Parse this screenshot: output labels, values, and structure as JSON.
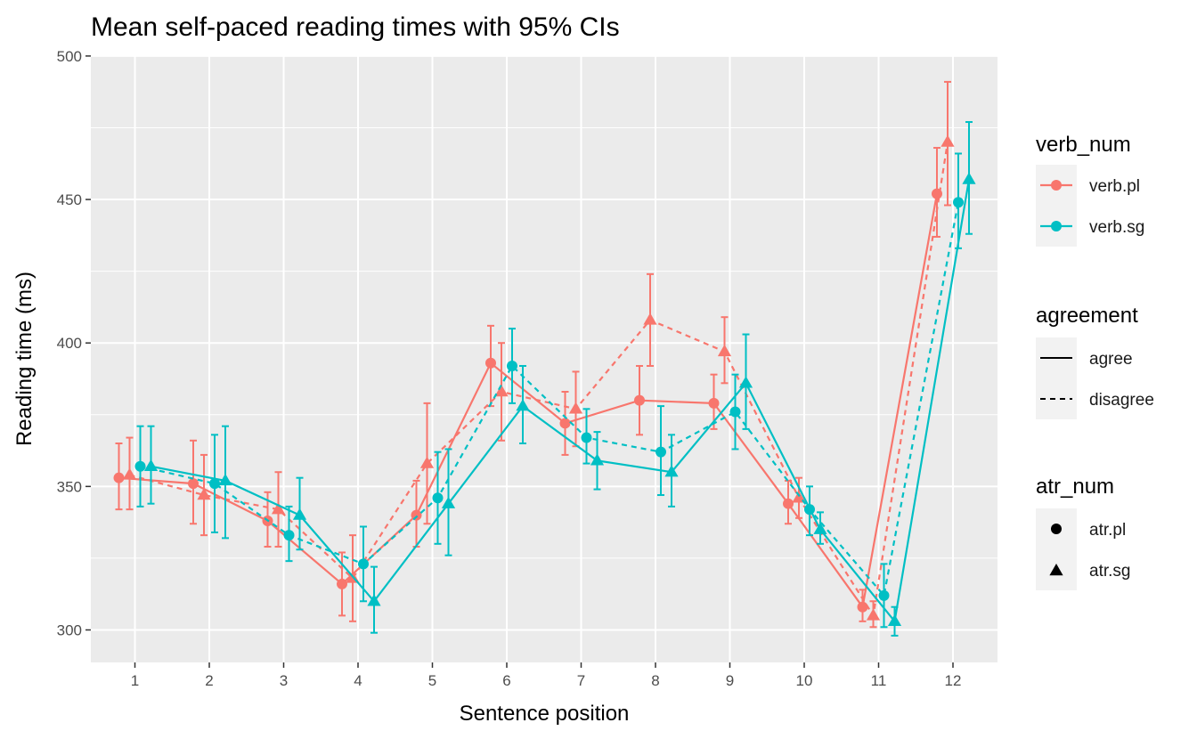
{
  "chart_data": {
    "type": "line",
    "title": "Mean self-paced reading times with 95% CIs",
    "xlabel": "Sentence position",
    "ylabel": "Reading time (ms)",
    "x": [
      1,
      2,
      3,
      4,
      5,
      6,
      7,
      8,
      9,
      10,
      11,
      12
    ],
    "ylim": [
      288,
      515
    ],
    "yticks": [
      300,
      350,
      400,
      450,
      500
    ],
    "grid": true,
    "legend_position": "right",
    "colors": {
      "verb.pl": "#F8766D",
      "verb.sg": "#00BFC4"
    },
    "legends": [
      {
        "title": "verb_num",
        "items": [
          {
            "label": "verb.pl",
            "color": "#F8766D"
          },
          {
            "label": "verb.sg",
            "color": "#00BFC4"
          }
        ]
      },
      {
        "title": "agreement",
        "items": [
          {
            "label": "agree",
            "linetype": "solid"
          },
          {
            "label": "disagree",
            "linetype": "dashed"
          }
        ]
      },
      {
        "title": "atr_num",
        "items": [
          {
            "label": "atr.pl",
            "shape": "circle"
          },
          {
            "label": "atr.sg",
            "shape": "triangle"
          }
        ]
      }
    ],
    "series": [
      {
        "verb_num": "verb.pl",
        "atr_num": "atr.pl",
        "agreement": "agree",
        "values": [
          353,
          351,
          338,
          316,
          340,
          393,
          372,
          380,
          379,
          344,
          308,
          452
        ],
        "ci_low": [
          342,
          337,
          329,
          305,
          329,
          378,
          361,
          368,
          370,
          337,
          303,
          437
        ],
        "ci_high": [
          365,
          366,
          348,
          327,
          352,
          406,
          383,
          392,
          389,
          352,
          314,
          468
        ]
      },
      {
        "verb_num": "verb.pl",
        "atr_num": "atr.sg",
        "agreement": "disagree",
        "values": [
          354,
          347,
          342,
          318,
          358,
          383,
          377,
          408,
          397,
          346,
          305,
          470
        ],
        "ci_low": [
          342,
          333,
          329,
          303,
          337,
          366,
          364,
          392,
          386,
          339,
          301,
          448
        ],
        "ci_high": [
          367,
          361,
          355,
          333,
          379,
          400,
          390,
          424,
          409,
          353,
          310,
          491
        ]
      },
      {
        "verb_num": "verb.sg",
        "atr_num": "atr.pl",
        "agreement": "disagree",
        "values": [
          357,
          351,
          333,
          323,
          346,
          392,
          367,
          362,
          376,
          342,
          312,
          449
        ],
        "ci_low": [
          343,
          334,
          324,
          310,
          330,
          379,
          358,
          347,
          363,
          333,
          301,
          433
        ],
        "ci_high": [
          371,
          368,
          343,
          336,
          362,
          405,
          377,
          378,
          389,
          350,
          323,
          466
        ]
      },
      {
        "verb_num": "verb.sg",
        "atr_num": "atr.sg",
        "agreement": "agree",
        "values": [
          357,
          352,
          340,
          310,
          344,
          378,
          359,
          355,
          386,
          335,
          303,
          457
        ],
        "ci_low": [
          344,
          332,
          328,
          299,
          326,
          365,
          349,
          343,
          370,
          330,
          298,
          438
        ],
        "ci_high": [
          371,
          371,
          353,
          322,
          363,
          392,
          369,
          368,
          403,
          341,
          308,
          477
        ]
      }
    ]
  }
}
